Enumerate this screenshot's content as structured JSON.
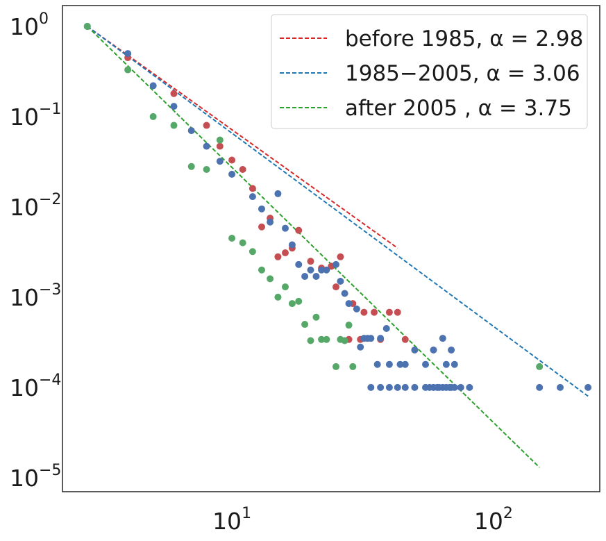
{
  "chart_data": {
    "type": "scatter",
    "xscale": "log",
    "yscale": "log",
    "xlim": [
      2.25,
      255
    ],
    "ylim": [
      7e-06,
      1.7
    ],
    "grid": false,
    "legend_position": "top-right",
    "x_ticks": [
      {
        "base": "10",
        "exp": "1",
        "value": 10
      },
      {
        "base": "10",
        "exp": "2",
        "value": 100
      }
    ],
    "y_ticks": [
      {
        "base": "10",
        "exp": "0",
        "value": 1
      },
      {
        "base": "10",
        "exp": "−1",
        "value": 0.1
      },
      {
        "base": "10",
        "exp": "−2",
        "value": 0.01
      },
      {
        "base": "10",
        "exp": "−3",
        "value": 0.001
      },
      {
        "base": "10",
        "exp": "−4",
        "value": 0.0001
      },
      {
        "base": "10",
        "exp": "−5",
        "value": 1e-05
      }
    ],
    "fits": [
      {
        "label": "before 1985, α = 2.98",
        "color": "#d62728",
        "x": [
          2.8,
          43
        ],
        "y": [
          1.0,
          0.0035
        ]
      },
      {
        "label": "1985−2005, α = 3.06",
        "color": "#1f77b4",
        "x": [
          2.8,
          230
        ],
        "y": [
          1.0,
          8e-05
        ]
      },
      {
        "label": "after 2005   , α = 3.75",
        "color": "#2ca02c",
        "x": [
          2.8,
          150
        ],
        "y": [
          1.0,
          1.3e-05
        ]
      }
    ],
    "series": [
      {
        "color": "#c44e52",
        "points": [
          [
            4,
            0.45
          ],
          [
            6,
            0.18
          ],
          [
            8,
            0.08
          ],
          [
            9,
            0.047
          ],
          [
            10,
            0.033
          ],
          [
            11,
            0.026
          ],
          [
            12,
            0.016
          ],
          [
            14,
            0.0075
          ],
          [
            13,
            0.006
          ],
          [
            15,
            0.0028
          ],
          [
            16,
            0.0031
          ],
          [
            17,
            0.0035
          ],
          [
            18,
            0.0055
          ],
          [
            20,
            0.0025
          ],
          [
            22,
            0.0021
          ],
          [
            24,
            0.0022
          ],
          [
            25,
            0.0013
          ],
          [
            26,
            0.0028
          ],
          [
            29,
            0.00085
          ],
          [
            28,
            0.00034
          ],
          [
            31,
            0.00034
          ],
          [
            32,
            0.00068
          ],
          [
            35,
            0.00068
          ],
          [
            37,
            0.00034
          ],
          [
            40,
            0.00068
          ],
          [
            43,
            0.00068
          ],
          [
            46,
            0.00034
          ]
        ]
      },
      {
        "color": "#4c72b0",
        "points": [
          [
            2.8,
            1.0
          ],
          [
            4,
            0.5
          ],
          [
            5,
            0.22
          ],
          [
            6,
            0.13
          ],
          [
            7,
            0.07
          ],
          [
            8,
            0.047
          ],
          [
            9,
            0.032
          ],
          [
            10,
            0.023
          ],
          [
            12,
            0.013
          ],
          [
            13,
            0.0095
          ],
          [
            14,
            0.0068
          ],
          [
            15,
            0.014
          ],
          [
            16,
            0.0058
          ],
          [
            17,
            0.0038
          ],
          [
            18,
            0.0023
          ],
          [
            19,
            0.0017
          ],
          [
            20,
            0.002
          ],
          [
            21,
            0.0017
          ],
          [
            22,
            0.002
          ],
          [
            23,
            0.002
          ],
          [
            25,
            0.0023
          ],
          [
            26,
            0.0015
          ],
          [
            27,
            0.0011
          ],
          [
            28,
            0.00085
          ],
          [
            30,
            0.00074
          ],
          [
            31,
            0.00028
          ],
          [
            32,
            0.00035
          ],
          [
            33,
            0.00035
          ],
          [
            34,
            0.00035
          ],
          [
            36,
            0.00018
          ],
          [
            37,
            0.00035
          ],
          [
            39,
            0.00045
          ],
          [
            40,
            0.00018
          ],
          [
            44,
            0.00018
          ],
          [
            46,
            0.00018
          ],
          [
            50,
            0.00026
          ],
          [
            55,
            0.00018
          ],
          [
            59,
            0.00026
          ],
          [
            64,
            0.00035
          ],
          [
            69,
            0.00026
          ],
          [
            66,
            0.00018
          ],
          [
            71,
            0.00018
          ],
          [
            34,
            0.0001
          ],
          [
            37,
            0.0001
          ],
          [
            40,
            0.0001
          ],
          [
            43,
            0.0001
          ],
          [
            46,
            0.0001
          ],
          [
            50,
            0.0001
          ],
          [
            55,
            0.0001
          ],
          [
            57,
            0.0001
          ],
          [
            59,
            0.0001
          ],
          [
            61,
            0.0001
          ],
          [
            62,
            0.0001
          ],
          [
            64,
            0.0001
          ],
          [
            66,
            0.0001
          ],
          [
            68,
            0.0001
          ],
          [
            69,
            0.0001
          ],
          [
            71,
            0.0001
          ],
          [
            75,
            0.0001
          ],
          [
            81,
            0.0001
          ],
          [
            150,
            0.0001
          ],
          [
            180,
            0.0001
          ],
          [
            230,
            0.0001
          ]
        ]
      },
      {
        "color": "#55a868",
        "points": [
          [
            2.8,
            1.0
          ],
          [
            4,
            0.33
          ],
          [
            5,
            0.1
          ],
          [
            6,
            0.08
          ],
          [
            7,
            0.028
          ],
          [
            8,
            0.026
          ],
          [
            9,
            0.055
          ],
          [
            10,
            0.0045
          ],
          [
            11,
            0.004
          ],
          [
            12,
            0.0032
          ],
          [
            13,
            0.002
          ],
          [
            14,
            0.0016
          ],
          [
            15,
            0.001
          ],
          [
            16,
            0.0013
          ],
          [
            17,
            0.00085
          ],
          [
            18,
            0.0009
          ],
          [
            19,
            0.0005
          ],
          [
            20,
            0.00033
          ],
          [
            21,
            0.0006
          ],
          [
            22,
            0.00034
          ],
          [
            23,
            0.00034
          ],
          [
            25,
            0.00017
          ],
          [
            26,
            0.00034
          ],
          [
            27,
            0.00033
          ],
          [
            28,
            0.00049
          ],
          [
            29,
            0.00017
          ],
          [
            150,
            0.00017
          ]
        ]
      }
    ]
  }
}
